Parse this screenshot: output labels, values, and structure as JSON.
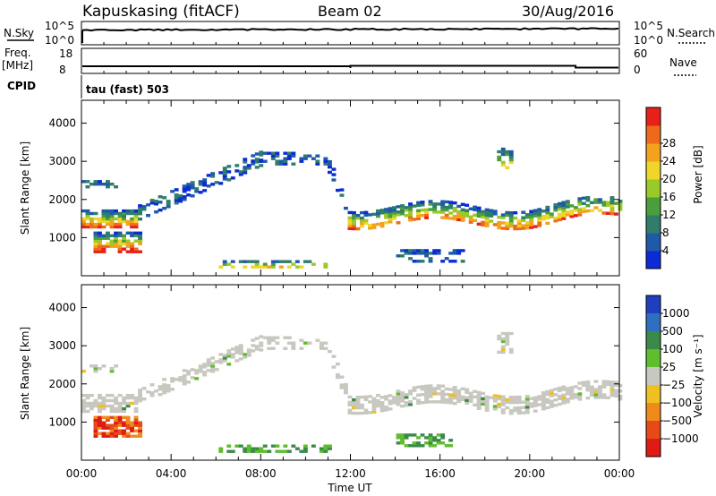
{
  "header": {
    "station": "Kapuskasing (fitACF)",
    "beam": "Beam 02",
    "date": "30/Aug/2016"
  },
  "strip_labels": {
    "nsky": "N.Sky",
    "nsky_hi": "10^5",
    "nsky_lo": "10^0",
    "nsearch": "N.Search",
    "nsearch_hi": "10^5",
    "nsearch_lo": "10^0",
    "freq": "Freq.",
    "freq_unit": "[MHz]",
    "freq_hi": "18",
    "freq_lo": "8",
    "nave": "Nave",
    "nave_hi": "60",
    "nave_lo": "0",
    "cpid": "CPID",
    "cpid_value": "tau (fast) 503"
  },
  "chart_data": [
    {
      "type": "heatmap",
      "name": "power",
      "ylabel": "Slant Range [km]",
      "yticks": [
        1000,
        2000,
        3000,
        4000
      ],
      "ylim": [
        0,
        4600
      ],
      "colorbar_label": "Power [dB]",
      "colorbar_ticks": [
        "4",
        "8",
        "12",
        "16",
        "20",
        "24",
        "28"
      ],
      "colors": [
        "#0b2bd6",
        "#1f5aa8",
        "#2f7d6a",
        "#4a9e3c",
        "#9ac92a",
        "#f0d52a",
        "#f2a21c",
        "#ee6a1a",
        "#e8201a"
      ],
      "grid": false
    },
    {
      "type": "heatmap",
      "name": "velocity",
      "ylabel": "Slant Range [km]",
      "yticks": [
        1000,
        2000,
        3000,
        4000
      ],
      "ylim": [
        0,
        4600
      ],
      "xlabel": "Time UT",
      "xticks": [
        "00:00",
        "04:00",
        "08:00",
        "12:00",
        "16:00",
        "20:00",
        "00:00"
      ],
      "colorbar_label": "Velocity [m s⁻¹]",
      "colorbar_ticks": [
        "1000",
        "500",
        "100",
        "25",
        "−25",
        "−100",
        "−500",
        "−1000"
      ],
      "colors": [
        "#1f3fbf",
        "#2f6fc0",
        "#3c8a4a",
        "#5fbd2e",
        "#c8c8c0",
        "#f0c020",
        "#f08a1c",
        "#e64a18",
        "#e01a14"
      ],
      "grid": false
    }
  ]
}
